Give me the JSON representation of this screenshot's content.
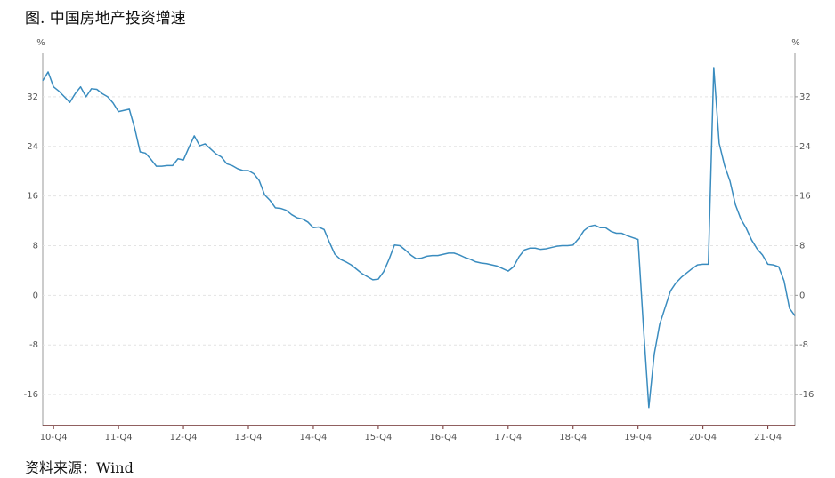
{
  "chart_data": {
    "type": "line",
    "title": "图. 中国房地产投资增速",
    "source": "资料来源：Wind",
    "y_unit": "%",
    "y2_unit": "%",
    "categories": [
      null,
      null,
      "10-Q4",
      null,
      null,
      null,
      null,
      null,
      null,
      null,
      null,
      null,
      null,
      null,
      "11-Q4",
      null,
      null,
      null,
      null,
      null,
      null,
      null,
      null,
      null,
      null,
      null,
      "12-Q4",
      null,
      null,
      null,
      null,
      null,
      null,
      null,
      null,
      null,
      null,
      null,
      "13-Q4",
      null,
      null,
      null,
      null,
      null,
      null,
      null,
      null,
      null,
      null,
      null,
      "14-Q4",
      null,
      null,
      null,
      null,
      null,
      null,
      null,
      null,
      null,
      null,
      null,
      "15-Q4",
      null,
      null,
      null,
      null,
      null,
      null,
      null,
      null,
      null,
      null,
      null,
      "16-Q4",
      null,
      null,
      null,
      null,
      null,
      null,
      null,
      null,
      null,
      null,
      null,
      "17-Q4",
      null,
      null,
      null,
      null,
      null,
      null,
      null,
      null,
      null,
      null,
      null,
      "18-Q4",
      null,
      null,
      null,
      null,
      null,
      null,
      null,
      null,
      null,
      null,
      null,
      "19-Q4",
      null,
      null,
      null,
      null,
      null,
      null,
      null,
      null,
      null,
      null,
      null,
      "20-Q4",
      null,
      null,
      null,
      null,
      null,
      null,
      null,
      null,
      null,
      null,
      null,
      "21-Q4",
      null,
      null,
      null,
      null,
      null
    ],
    "series": [
      {
        "color": "#3a8cbf",
        "values": [
          34.6,
          36.0,
          33.6,
          32.9,
          32.0,
          31.1,
          32.5,
          33.6,
          32.0,
          33.3,
          33.2,
          32.5,
          32.0,
          31.0,
          29.6,
          29.8,
          30.0,
          26.9,
          23.1,
          22.9,
          21.9,
          20.8,
          20.8,
          20.9,
          20.9,
          22.0,
          21.8,
          23.8,
          25.7,
          24.1,
          24.4,
          23.6,
          22.8,
          22.3,
          21.2,
          20.9,
          20.4,
          20.1,
          20.1,
          19.6,
          18.5,
          16.2,
          15.3,
          14.1,
          14.0,
          13.7,
          13.0,
          12.5,
          12.3,
          11.8,
          10.9,
          11.0,
          10.6,
          8.5,
          6.6,
          5.8,
          5.4,
          4.9,
          4.2,
          3.5,
          3.0,
          2.5,
          2.6,
          3.8,
          5.8,
          8.1,
          8.0,
          7.3,
          6.5,
          5.9,
          6.0,
          6.3,
          6.4,
          6.4,
          6.6,
          6.8,
          6.8,
          6.5,
          6.1,
          5.8,
          5.4,
          5.2,
          5.1,
          4.9,
          4.7,
          4.3,
          3.9,
          4.6,
          6.2,
          7.3,
          7.6,
          7.6,
          7.4,
          7.5,
          7.7,
          7.9,
          8.0,
          8.0,
          8.1,
          9.1,
          10.4,
          11.1,
          11.3,
          10.9,
          10.9,
          10.3,
          10.0,
          10.0,
          9.6,
          9.3,
          9.0,
          -5.0,
          -18.1,
          -9.5,
          -4.7,
          -2.0,
          0.7,
          2.0,
          2.9,
          3.6,
          4.3,
          4.9,
          5.0,
          5.0,
          36.7,
          24.5,
          20.9,
          18.4,
          14.6,
          12.3,
          10.8,
          8.9,
          7.5,
          6.5,
          5.0,
          4.9,
          4.6,
          2.3,
          -2.1,
          -3.3
        ]
      }
    ],
    "ylim": [
      -21,
      39
    ],
    "yticks": [
      -16,
      -8,
      0,
      8,
      16,
      24,
      32
    ],
    "y2lim": [
      -21,
      39
    ],
    "y2ticks": [
      -16,
      -8,
      0,
      8,
      16,
      24,
      32
    ],
    "grid": true
  }
}
